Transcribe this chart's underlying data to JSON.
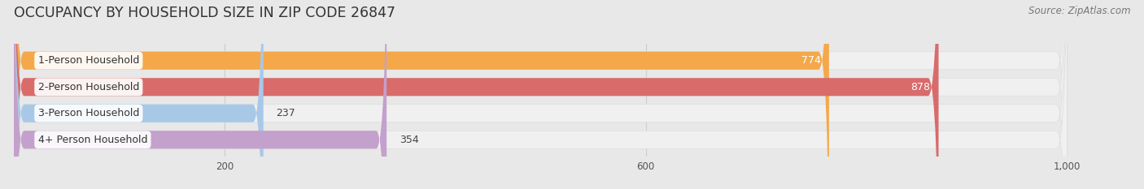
{
  "title": "OCCUPANCY BY HOUSEHOLD SIZE IN ZIP CODE 26847",
  "source": "Source: ZipAtlas.com",
  "categories": [
    "1-Person Household",
    "2-Person Household",
    "3-Person Household",
    "4+ Person Household"
  ],
  "values": [
    774,
    878,
    237,
    354
  ],
  "bar_colors": [
    "#F5A84A",
    "#D96B6B",
    "#A8C8E8",
    "#C4A0CC"
  ],
  "label_colors": [
    "white",
    "white",
    "#444444",
    "#444444"
  ],
  "background_color": "#E8E8E8",
  "bar_bg_color": "#F0F0F0",
  "xlim": [
    0,
    1060
  ],
  "data_max": 1000,
  "xticks": [
    200,
    600,
    1000
  ],
  "title_fontsize": 12.5,
  "source_fontsize": 8.5,
  "bar_label_fontsize": 9,
  "category_fontsize": 9,
  "bar_height": 0.68,
  "bar_gap": 0.32
}
